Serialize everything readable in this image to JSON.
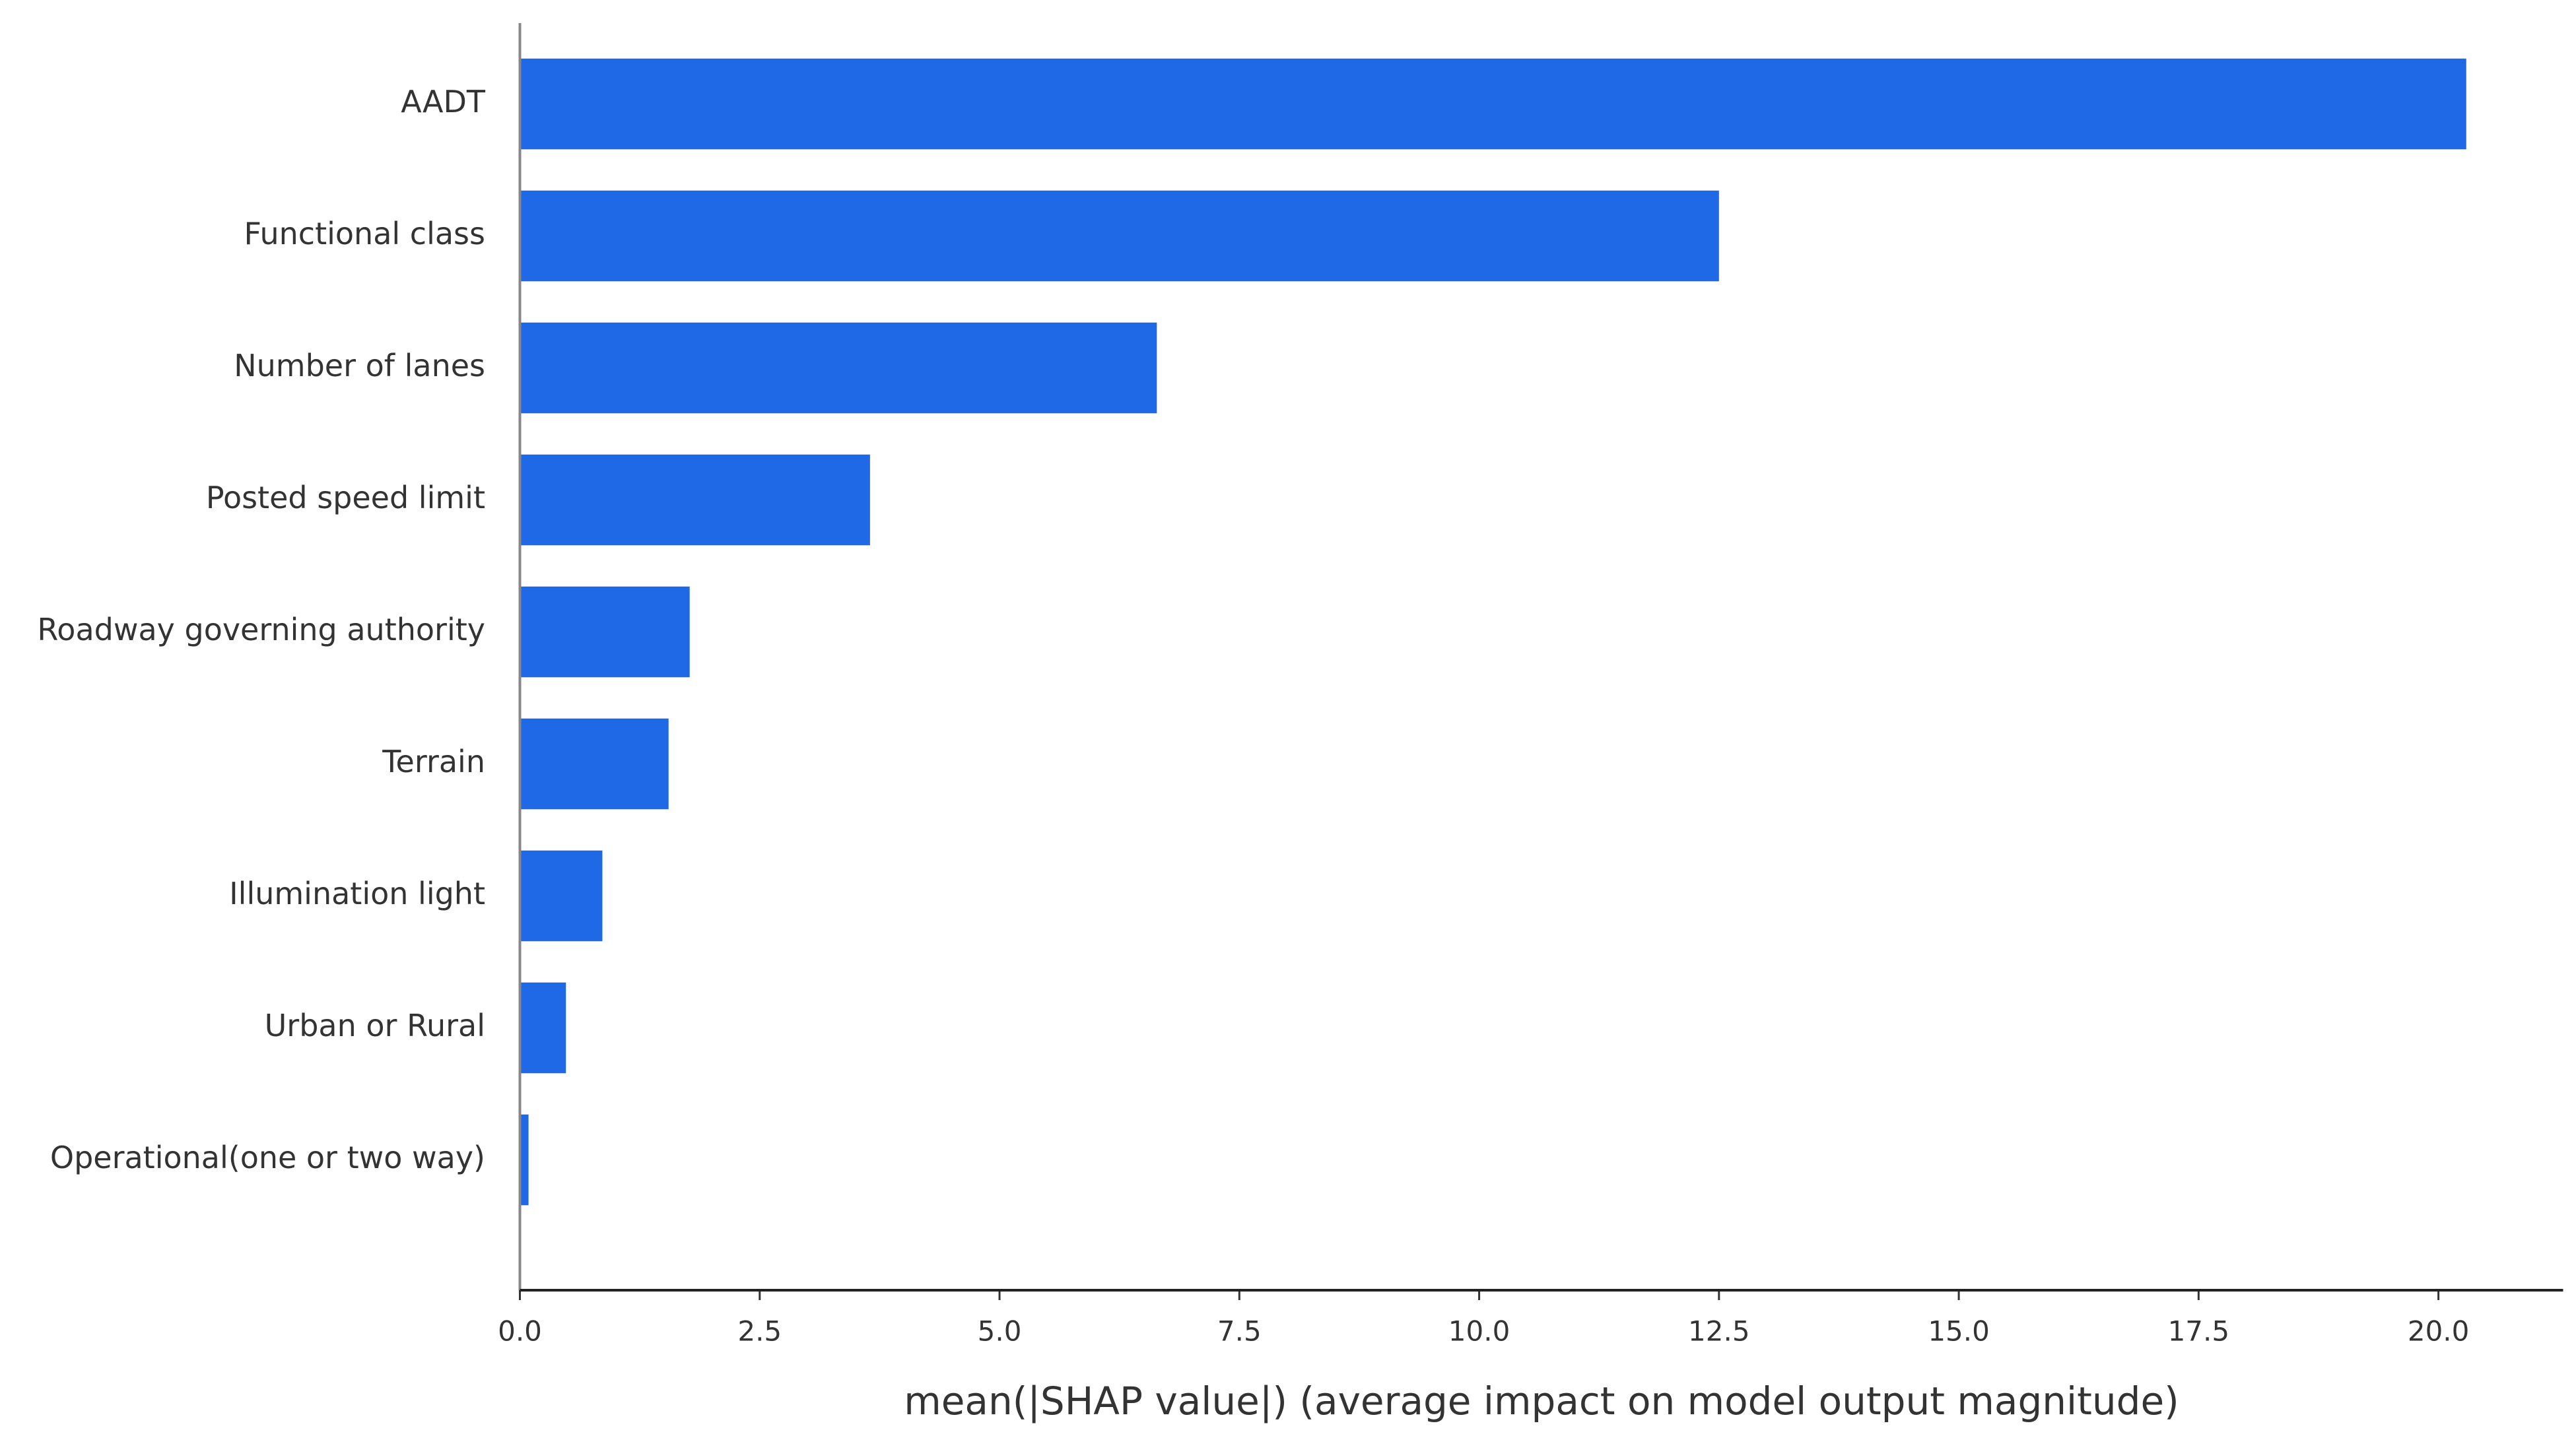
{
  "chart_data": {
    "type": "barh",
    "xlabel": "mean(|SHAP value|) (average impact on model output magnitude)",
    "categories": [
      "AADT",
      "Functional class",
      "Number of lanes",
      "Posted speed limit",
      "Roadway governing authority",
      "Terrain",
      "Illumination light",
      "Urban or Rural",
      "Operational(one or two way)"
    ],
    "values": [
      20.29,
      12.5,
      6.64,
      3.65,
      1.77,
      1.55,
      0.86,
      0.48,
      0.09
    ],
    "color": "#1f69e6",
    "xlim": [
      0,
      21.3
    ],
    "xticks": [
      {
        "value": 0,
        "label": "0.0"
      },
      2.5,
      {
        "value": 5,
        "label": "5.0"
      },
      7.5,
      {
        "value": 10,
        "label": "10.0"
      },
      12.5,
      {
        "value": 15,
        "label": "15.0"
      },
      17.5,
      {
        "value": 20,
        "label": "20.0"
      }
    ]
  }
}
